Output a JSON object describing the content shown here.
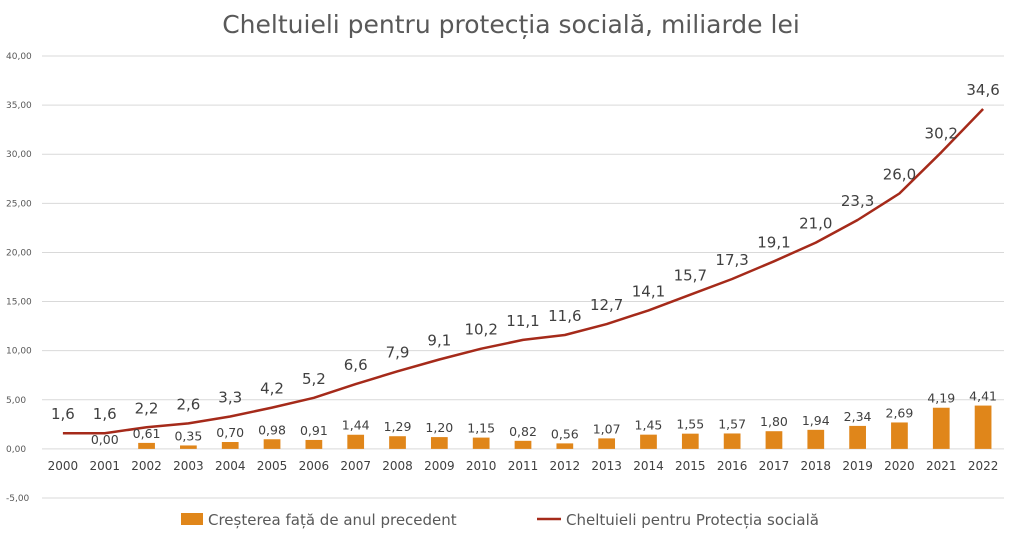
{
  "chart_data": {
    "type": "bar+line",
    "title": "Cheltuieli pentru protecția socială, miliarde lei",
    "categories": [
      "2000",
      "2001",
      "2002",
      "2003",
      "2004",
      "2005",
      "2006",
      "2007",
      "2008",
      "2009",
      "2010",
      "2011",
      "2012",
      "2013",
      "2014",
      "2015",
      "2016",
      "2017",
      "2018",
      "2019",
      "2020",
      "2021",
      "2022"
    ],
    "ylim": [
      -5,
      40
    ],
    "yticks": [
      "-5,00",
      "0,00",
      "5,00",
      "10,00",
      "15,00",
      "20,00",
      "25,00",
      "30,00",
      "35,00",
      "40,00"
    ],
    "ytick_values": [
      -5,
      0,
      5,
      10,
      15,
      20,
      25,
      30,
      35,
      40
    ],
    "grid": true,
    "legend_position": "bottom",
    "series": [
      {
        "name": "Creșterea față de anul precedent",
        "kind": "bar",
        "color": "#E0861A",
        "values": [
          null,
          0.0,
          0.61,
          0.35,
          0.7,
          0.98,
          0.91,
          1.44,
          1.29,
          1.2,
          1.15,
          0.82,
          0.56,
          1.07,
          1.45,
          1.55,
          1.57,
          1.8,
          1.94,
          2.34,
          2.69,
          4.19,
          4.41
        ],
        "labels": [
          "",
          "0,00",
          "0,61",
          "0,35",
          "0,70",
          "0,98",
          "0,91",
          "1,44",
          "1,29",
          "1,20",
          "1,15",
          "0,82",
          "0,56",
          "1,07",
          "1,45",
          "1,55",
          "1,57",
          "1,80",
          "1,94",
          "2,34",
          "2,69",
          "4,19",
          "4,41"
        ]
      },
      {
        "name": "Cheltuieli pentru Protecția socială",
        "kind": "line",
        "color": "#A52A1A",
        "values": [
          1.6,
          1.6,
          2.2,
          2.6,
          3.3,
          4.2,
          5.2,
          6.6,
          7.9,
          9.1,
          10.2,
          11.1,
          11.6,
          12.7,
          14.1,
          15.7,
          17.3,
          19.1,
          21.0,
          23.3,
          26.0,
          30.2,
          34.6
        ],
        "labels": [
          "1,6",
          "1,6",
          "2,2",
          "2,6",
          "3,3",
          "4,2",
          "5,2",
          "6,6",
          "7,9",
          "9,1",
          "10,2",
          "11,1",
          "11,6",
          "12,7",
          "14,1",
          "15,7",
          "17,3",
          "19,1",
          "21,0",
          "23,3",
          "26,0",
          "30,2",
          "34,6"
        ]
      }
    ]
  }
}
